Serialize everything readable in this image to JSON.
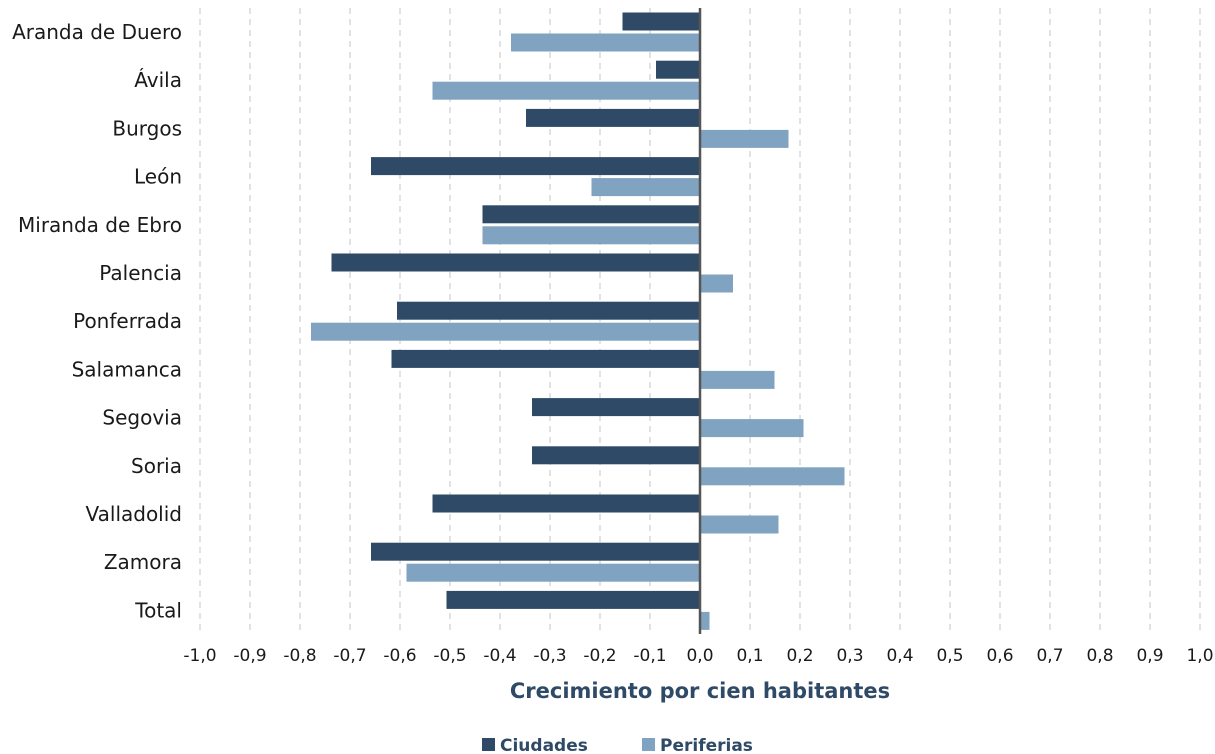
{
  "chart_data": {
    "type": "bar",
    "orientation": "horizontal",
    "categories": [
      "Aranda de Duero",
      "Ávila",
      "Burgos",
      "León",
      "Miranda de Ebro",
      "Palencia",
      "Ponferrada",
      "Salamanca",
      "Segovia",
      "Soria",
      "Valladolid",
      "Zamora",
      "Total"
    ],
    "series": [
      {
        "name": "Ciudades",
        "color": "#2e4a66",
        "values": [
          -0.155,
          -0.088,
          -0.348,
          -0.658,
          -0.435,
          -0.737,
          -0.606,
          -0.617,
          -0.336,
          -0.336,
          -0.535,
          -0.658,
          -0.507
        ]
      },
      {
        "name": "Periferias",
        "color": "#7fa3c1",
        "values": [
          -0.378,
          -0.535,
          0.177,
          -0.217,
          -0.435,
          0.066,
          -0.778,
          0.149,
          0.207,
          0.289,
          0.157,
          -0.587,
          0.019
        ]
      }
    ],
    "xlim": [
      -1.0,
      1.0
    ],
    "xticks": [
      "-1,0",
      "-0,9",
      "-0,8",
      "-0,7",
      "-0,6",
      "-0,5",
      "-0,4",
      "-0,3",
      "-0,2",
      "-0,1",
      "0,0",
      "0,1",
      "0,2",
      "0,3",
      "0,4",
      "0,5",
      "0,6",
      "0,7",
      "0,8",
      "0,9",
      "1,0"
    ],
    "xlabel": "Crecimiento por cien habitantes",
    "grid": "vertical dashed",
    "legend_position": "bottom"
  }
}
